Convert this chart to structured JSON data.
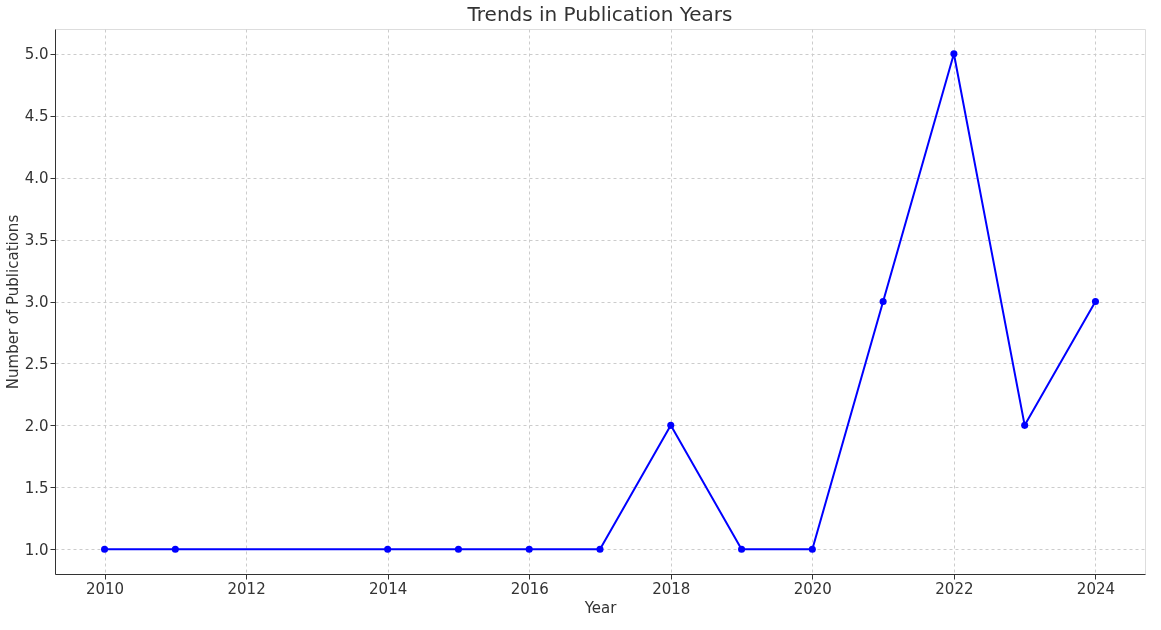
{
  "chart_data": {
    "type": "line",
    "title": "Trends in Publication Years",
    "xlabel": "Year",
    "ylabel": "Number of Publications",
    "x": [
      2010,
      2011,
      2014,
      2015,
      2016,
      2017,
      2018,
      2019,
      2020,
      2021,
      2022,
      2023,
      2024
    ],
    "series": [
      {
        "color": "#0000ff",
        "values": [
          1,
          1,
          1,
          1,
          1,
          1,
          2,
          1,
          1,
          3,
          5,
          2,
          3
        ]
      }
    ],
    "xlim": [
      2009.3,
      2024.7
    ],
    "xticks": [
      2010,
      2012,
      2014,
      2016,
      2018,
      2020,
      2022,
      2024
    ],
    "ylim": [
      0.8,
      5.2
    ],
    "yticks": [
      {
        "value": 1.0,
        "label": "1.0"
      },
      {
        "value": 1.5,
        "label": "1.5"
      },
      {
        "value": 2.0,
        "label": "2.0"
      },
      {
        "value": 2.5,
        "label": "2.5"
      },
      {
        "value": 3.0,
        "label": "3.0"
      },
      {
        "value": 3.5,
        "label": "3.5"
      },
      {
        "value": 4.0,
        "label": "4.0"
      },
      {
        "value": 4.5,
        "label": "4.5"
      },
      {
        "value": 5.0,
        "label": "5.0"
      }
    ],
    "grid": true,
    "marker": "circle",
    "line_style": "solid"
  }
}
